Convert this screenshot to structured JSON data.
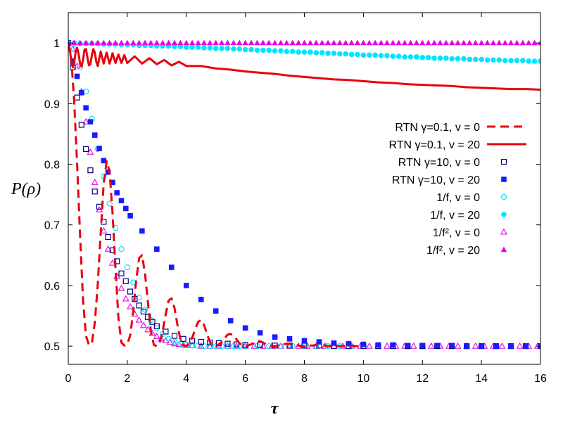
{
  "chart_data": {
    "type": "scatter",
    "title": "",
    "xlabel": "τ",
    "ylabel": "P(ρ)",
    "xlim": [
      0,
      16
    ],
    "ylim": [
      0.47,
      1.05
    ],
    "xticks": [
      0,
      2,
      4,
      6,
      8,
      10,
      12,
      14,
      16
    ],
    "xtick_labels": [
      "0",
      "2",
      "4",
      "6",
      "8",
      "10",
      "12",
      "14",
      "16"
    ],
    "yticks": [
      0.5,
      0.6,
      0.7,
      0.8,
      0.9,
      1.0
    ],
    "ytick_labels": [
      "0.5",
      "0.6",
      "0.7",
      "0.8",
      "0.9",
      "1"
    ],
    "legend_position": "right",
    "series": [
      {
        "id": "rtn01_v0",
        "name": "RTN γ=0.1, v = 0",
        "style": "dashed-line",
        "color": "#e8000b",
        "x": [
          0.0,
          0.1,
          0.2,
          0.3,
          0.4,
          0.5,
          0.6,
          0.7,
          0.8,
          0.9,
          1.0,
          1.1,
          1.2,
          1.3,
          1.4,
          1.5,
          1.6,
          1.7,
          1.8,
          1.9,
          2.0,
          2.1,
          2.2,
          2.3,
          2.4,
          2.5,
          2.6,
          2.7,
          2.8,
          2.9,
          3.0,
          3.1,
          3.2,
          3.3,
          3.4,
          3.5,
          3.6,
          3.7,
          3.8,
          3.9,
          4.0,
          4.1,
          4.2,
          4.3,
          4.4,
          4.5,
          4.6,
          4.7,
          4.8,
          4.9,
          5.0,
          5.1,
          5.2,
          5.3,
          5.4,
          5.5,
          5.6,
          5.7,
          5.8,
          5.9,
          6.0,
          6.1,
          6.2,
          6.3,
          6.4,
          6.5,
          6.6,
          6.7,
          6.8,
          6.9,
          7.0,
          7.1,
          7.2,
          7.3,
          7.4,
          7.5,
          7.6,
          7.7,
          7.8,
          7.9,
          8.0,
          8.1,
          8.2,
          8.3,
          8.4,
          8.5,
          8.6,
          8.7,
          8.8,
          8.9,
          9.0,
          9.1,
          9.2,
          9.3,
          9.4,
          9.5,
          9.6,
          9.7,
          9.8,
          9.9,
          10.0
        ],
        "y": [
          1.0,
          0.975,
          0.904,
          0.8,
          0.683,
          0.576,
          0.517,
          0.502,
          0.505,
          0.539,
          0.602,
          0.687,
          0.768,
          0.805,
          0.788,
          0.72,
          0.629,
          0.546,
          0.506,
          0.501,
          0.503,
          0.518,
          0.556,
          0.608,
          0.645,
          0.65,
          0.62,
          0.572,
          0.525,
          0.502,
          0.5,
          0.506,
          0.525,
          0.552,
          0.575,
          0.579,
          0.563,
          0.535,
          0.511,
          0.501,
          0.5,
          0.504,
          0.514,
          0.528,
          0.54,
          0.543,
          0.535,
          0.52,
          0.507,
          0.501,
          0.5,
          0.502,
          0.507,
          0.513,
          0.519,
          0.52,
          0.517,
          0.511,
          0.505,
          0.501,
          0.5,
          0.501,
          0.503,
          0.506,
          0.508,
          0.508,
          0.506,
          0.503,
          0.501,
          0.5,
          0.5,
          0.501,
          0.502,
          0.503,
          0.504,
          0.504,
          0.503,
          0.502,
          0.501,
          0.5,
          0.5,
          0.5,
          0.501,
          0.501,
          0.502,
          0.502,
          0.501,
          0.501,
          0.5,
          0.5,
          0.5,
          0.5,
          0.5,
          0.5,
          0.5,
          0.5,
          0.5,
          0.5,
          0.5,
          0.5,
          0.5
        ]
      },
      {
        "id": "rtn01_v20",
        "name": "RTN γ=0.1, v = 20",
        "style": "solid-line",
        "color": "#e8000b",
        "x": [
          0.0,
          0.05,
          0.1,
          0.15,
          0.2,
          0.25,
          0.3,
          0.35,
          0.4,
          0.45,
          0.5,
          0.55,
          0.6,
          0.65,
          0.7,
          0.75,
          0.8,
          0.85,
          0.9,
          0.95,
          1.0,
          1.1,
          1.2,
          1.3,
          1.4,
          1.5,
          1.6,
          1.7,
          1.8,
          1.9,
          2.0,
          2.25,
          2.5,
          2.75,
          3.0,
          3.25,
          3.5,
          3.75,
          4.0,
          4.5,
          5.0,
          5.5,
          6.0,
          6.5,
          7.0,
          7.5,
          8.0,
          8.5,
          9.0,
          9.5,
          10.0,
          10.5,
          11.0,
          11.5,
          12.0,
          12.5,
          13.0,
          13.5,
          14.0,
          14.5,
          15.0,
          15.5,
          16.0
        ],
        "y": [
          1.0,
          0.99,
          0.97,
          0.96,
          0.968,
          0.985,
          0.992,
          0.982,
          0.966,
          0.961,
          0.972,
          0.989,
          0.99,
          0.976,
          0.963,
          0.965,
          0.98,
          0.99,
          0.984,
          0.969,
          0.962,
          0.986,
          0.966,
          0.984,
          0.966,
          0.983,
          0.967,
          0.981,
          0.967,
          0.98,
          0.967,
          0.978,
          0.966,
          0.975,
          0.965,
          0.972,
          0.963,
          0.969,
          0.962,
          0.962,
          0.958,
          0.956,
          0.953,
          0.951,
          0.949,
          0.946,
          0.944,
          0.942,
          0.94,
          0.939,
          0.937,
          0.935,
          0.934,
          0.932,
          0.931,
          0.93,
          0.929,
          0.927,
          0.926,
          0.925,
          0.924,
          0.924,
          0.923
        ]
      },
      {
        "id": "rtn10_v0",
        "name": "RTN γ=10, v = 0",
        "style": "open-square",
        "color": "#00007f",
        "x": [
          0.0,
          0.15,
          0.3,
          0.45,
          0.6,
          0.75,
          0.9,
          1.05,
          1.2,
          1.35,
          1.5,
          1.65,
          1.8,
          1.95,
          2.1,
          2.25,
          2.4,
          2.55,
          2.7,
          2.85,
          3.0,
          3.3,
          3.6,
          3.9,
          4.2,
          4.5,
          4.8,
          5.1,
          5.4,
          5.7,
          6.0,
          6.5,
          7.0,
          7.5,
          8.0,
          8.5,
          9.0,
          9.5,
          10.0,
          10.5,
          11.0,
          11.5,
          12.0,
          12.5,
          13.0,
          13.5,
          14.0,
          14.5,
          15.0,
          15.5,
          16.0
        ],
        "y": [
          1.0,
          0.96,
          0.91,
          0.865,
          0.825,
          0.79,
          0.755,
          0.73,
          0.705,
          0.68,
          0.658,
          0.64,
          0.62,
          0.607,
          0.59,
          0.578,
          0.567,
          0.557,
          0.548,
          0.54,
          0.533,
          0.524,
          0.517,
          0.512,
          0.509,
          0.507,
          0.506,
          0.505,
          0.504,
          0.503,
          0.502,
          0.502,
          0.501,
          0.501,
          0.501,
          0.501,
          0.5,
          0.5,
          0.5,
          0.5,
          0.5,
          0.5,
          0.5,
          0.5,
          0.5,
          0.5,
          0.5,
          0.5,
          0.5,
          0.5,
          0.5
        ]
      },
      {
        "id": "rtn10_v20",
        "name": "RTN γ=10, v = 20",
        "style": "filled-square",
        "color": "#1a1aff",
        "x": [
          0.0,
          0.15,
          0.3,
          0.45,
          0.6,
          0.75,
          0.9,
          1.05,
          1.2,
          1.35,
          1.5,
          1.65,
          1.8,
          1.95,
          2.1,
          2.5,
          3.0,
          3.5,
          4.0,
          4.5,
          5.0,
          5.5,
          6.0,
          6.5,
          7.0,
          7.5,
          8.0,
          8.5,
          9.0,
          9.5,
          10.0,
          10.5,
          11.0,
          11.5,
          12.0,
          12.5,
          13.0,
          13.5,
          14.0,
          14.5,
          15.0,
          15.5,
          16.0
        ],
        "y": [
          1.0,
          0.97,
          0.945,
          0.918,
          0.893,
          0.87,
          0.848,
          0.826,
          0.806,
          0.787,
          0.77,
          0.753,
          0.74,
          0.727,
          0.715,
          0.69,
          0.66,
          0.63,
          0.6,
          0.577,
          0.558,
          0.542,
          0.53,
          0.522,
          0.515,
          0.512,
          0.509,
          0.507,
          0.505,
          0.504,
          0.503,
          0.502,
          0.502,
          0.501,
          0.501,
          0.501,
          0.501,
          0.5,
          0.5,
          0.5,
          0.5,
          0.5,
          0.5
        ]
      },
      {
        "id": "invf_v0",
        "name": "1/f, v = 0",
        "style": "open-circle",
        "color": "#00e5ff",
        "x": [
          0.0,
          0.2,
          0.4,
          0.6,
          0.8,
          1.0,
          1.2,
          1.4,
          1.6,
          1.8,
          2.0,
          2.2,
          2.4,
          2.6,
          2.8,
          3.0,
          3.2,
          3.4,
          3.6,
          3.8,
          4.0,
          4.2,
          4.4,
          4.6,
          4.8,
          5.0,
          5.2,
          5.4,
          5.6,
          5.8,
          6.0,
          6.4,
          6.8,
          7.2,
          7.6,
          8.0,
          8.4,
          8.8,
          9.2,
          9.6,
          10.0,
          10.5,
          11.0,
          11.5,
          12.0,
          12.5,
          13.0,
          13.5,
          14.0,
          14.5,
          15.0,
          15.5,
          16.0
        ],
        "y": [
          1.0,
          0.99,
          0.96,
          0.92,
          0.875,
          0.825,
          0.78,
          0.735,
          0.695,
          0.66,
          0.63,
          0.605,
          0.58,
          0.56,
          0.543,
          0.53,
          0.52,
          0.512,
          0.507,
          0.504,
          0.502,
          0.501,
          0.501,
          0.5,
          0.5,
          0.5,
          0.5,
          0.5,
          0.5,
          0.5,
          0.5,
          0.5,
          0.5,
          0.5,
          0.5,
          0.5,
          0.5,
          0.5,
          0.5,
          0.5,
          0.5,
          0.5,
          0.5,
          0.5,
          0.5,
          0.5,
          0.5,
          0.5,
          0.5,
          0.5,
          0.5,
          0.5,
          0.5
        ]
      },
      {
        "id": "invf_v20",
        "name": "1/f, v = 20",
        "style": "filled-circle",
        "color": "#00e5ff",
        "x": [
          0.0,
          0.2,
          0.4,
          0.6,
          0.8,
          1.0,
          1.2,
          1.4,
          1.6,
          1.8,
          2.0,
          2.2,
          2.4,
          2.6,
          2.8,
          3.0,
          3.2,
          3.4,
          3.6,
          3.8,
          4.0,
          4.2,
          4.4,
          4.6,
          4.8,
          5.0,
          5.2,
          5.4,
          5.6,
          5.8,
          6.0,
          6.2,
          6.4,
          6.6,
          6.8,
          7.0,
          7.2,
          7.4,
          7.6,
          7.8,
          8.0,
          8.2,
          8.4,
          8.6,
          8.8,
          9.0,
          9.2,
          9.4,
          9.6,
          9.8,
          10.0,
          10.2,
          10.4,
          10.6,
          10.8,
          11.0,
          11.2,
          11.4,
          11.6,
          11.8,
          12.0,
          12.2,
          12.4,
          12.6,
          12.8,
          13.0,
          13.2,
          13.4,
          13.6,
          13.8,
          14.0,
          14.2,
          14.4,
          14.6,
          14.8,
          15.0,
          15.2,
          15.4,
          15.6,
          15.8,
          16.0
        ],
        "y": [
          1.0,
          1.0,
          0.999,
          0.999,
          0.999,
          0.999,
          0.998,
          0.998,
          0.998,
          0.997,
          0.997,
          0.997,
          0.996,
          0.996,
          0.996,
          0.995,
          0.995,
          0.995,
          0.994,
          0.994,
          0.993,
          0.993,
          0.993,
          0.992,
          0.992,
          0.991,
          0.991,
          0.991,
          0.99,
          0.99,
          0.989,
          0.989,
          0.988,
          0.988,
          0.988,
          0.987,
          0.987,
          0.986,
          0.986,
          0.985,
          0.985,
          0.985,
          0.984,
          0.984,
          0.983,
          0.983,
          0.982,
          0.982,
          0.981,
          0.981,
          0.98,
          0.98,
          0.98,
          0.979,
          0.979,
          0.978,
          0.978,
          0.977,
          0.977,
          0.977,
          0.976,
          0.976,
          0.975,
          0.975,
          0.975,
          0.974,
          0.974,
          0.974,
          0.973,
          0.973,
          0.973,
          0.972,
          0.972,
          0.972,
          0.971,
          0.971,
          0.971,
          0.971,
          0.97,
          0.97,
          0.97
        ]
      },
      {
        "id": "invf2_v0",
        "name": "1/f², v = 0",
        "style": "open-triangle",
        "color": "#e600e6",
        "x": [
          0.0,
          0.15,
          0.3,
          0.45,
          0.6,
          0.75,
          0.9,
          1.05,
          1.2,
          1.35,
          1.5,
          1.65,
          1.8,
          1.95,
          2.1,
          2.25,
          2.4,
          2.55,
          2.7,
          2.85,
          3.0,
          3.15,
          3.3,
          3.45,
          3.6,
          3.75,
          3.9,
          4.05,
          4.2,
          4.5,
          4.8,
          5.1,
          5.4,
          5.7,
          6.0,
          6.3,
          6.6,
          6.9,
          7.2,
          7.5,
          7.8,
          8.1,
          8.4,
          8.7,
          9.0,
          9.3,
          9.6,
          9.9,
          10.2,
          10.5,
          10.8,
          11.1,
          11.4,
          11.7,
          12.0,
          12.3,
          12.6,
          12.9,
          13.2,
          13.5,
          13.8,
          14.1,
          14.4,
          14.7,
          15.0,
          15.3,
          15.6,
          15.9
        ],
        "y": [
          1.0,
          0.99,
          0.962,
          0.92,
          0.87,
          0.82,
          0.77,
          0.725,
          0.69,
          0.66,
          0.637,
          0.615,
          0.595,
          0.578,
          0.565,
          0.553,
          0.543,
          0.534,
          0.527,
          0.521,
          0.516,
          0.512,
          0.509,
          0.506,
          0.504,
          0.503,
          0.502,
          0.501,
          0.501,
          0.5,
          0.5,
          0.5,
          0.5,
          0.5,
          0.5,
          0.5,
          0.5,
          0.5,
          0.5,
          0.5,
          0.5,
          0.5,
          0.5,
          0.5,
          0.5,
          0.5,
          0.5,
          0.5,
          0.5,
          0.5,
          0.5,
          0.5,
          0.5,
          0.5,
          0.5,
          0.5,
          0.5,
          0.5,
          0.5,
          0.5,
          0.5,
          0.5,
          0.5,
          0.5,
          0.5,
          0.5,
          0.5,
          0.5
        ]
      },
      {
        "id": "invf2_v20",
        "name": "1/f², v = 20",
        "style": "filled-triangle",
        "color": "#e600e6",
        "x": [
          0.0,
          0.2,
          0.4,
          0.6,
          0.8,
          1.0,
          1.2,
          1.4,
          1.6,
          1.8,
          2.0,
          2.2,
          2.4,
          2.6,
          2.8,
          3.0,
          3.2,
          3.4,
          3.6,
          3.8,
          4.0,
          4.2,
          4.4,
          4.6,
          4.8,
          5.0,
          5.2,
          5.4,
          5.6,
          5.8,
          6.0,
          6.2,
          6.4,
          6.6,
          6.8,
          7.0,
          7.2,
          7.4,
          7.6,
          7.8,
          8.0,
          8.2,
          8.4,
          8.6,
          8.8,
          9.0,
          9.2,
          9.4,
          9.6,
          9.8,
          10.0,
          10.2,
          10.4,
          10.6,
          10.8,
          11.0,
          11.2,
          11.4,
          11.6,
          11.8,
          12.0,
          12.2,
          12.4,
          12.6,
          12.8,
          13.0,
          13.2,
          13.4,
          13.6,
          13.8,
          14.0,
          14.2,
          14.4,
          14.6,
          14.8,
          15.0,
          15.2,
          15.4,
          15.6,
          15.8,
          16.0
        ],
        "y": [
          1.0,
          1.0,
          1.0,
          1.0,
          1.0,
          1.0,
          1.0,
          1.0,
          1.0,
          1.0,
          1.0,
          1.0,
          1.0,
          1.0,
          1.0,
          1.0,
          1.0,
          1.0,
          1.0,
          1.0,
          1.0,
          1.0,
          1.0,
          1.0,
          1.0,
          1.0,
          1.0,
          1.0,
          1.0,
          1.0,
          1.0,
          1.0,
          1.0,
          1.0,
          1.0,
          1.0,
          1.0,
          1.0,
          1.0,
          1.0,
          1.0,
          1.0,
          1.0,
          1.0,
          1.0,
          1.0,
          1.0,
          1.0,
          1.0,
          1.0,
          1.0,
          1.0,
          1.0,
          1.0,
          1.0,
          1.0,
          1.0,
          1.0,
          1.0,
          1.0,
          1.0,
          1.0,
          1.0,
          1.0,
          1.0,
          1.0,
          1.0,
          1.0,
          1.0,
          1.0,
          1.0,
          1.0,
          1.0,
          1.0,
          1.0,
          1.0,
          1.0,
          1.0,
          1.0,
          1.0,
          1.0
        ]
      }
    ]
  }
}
